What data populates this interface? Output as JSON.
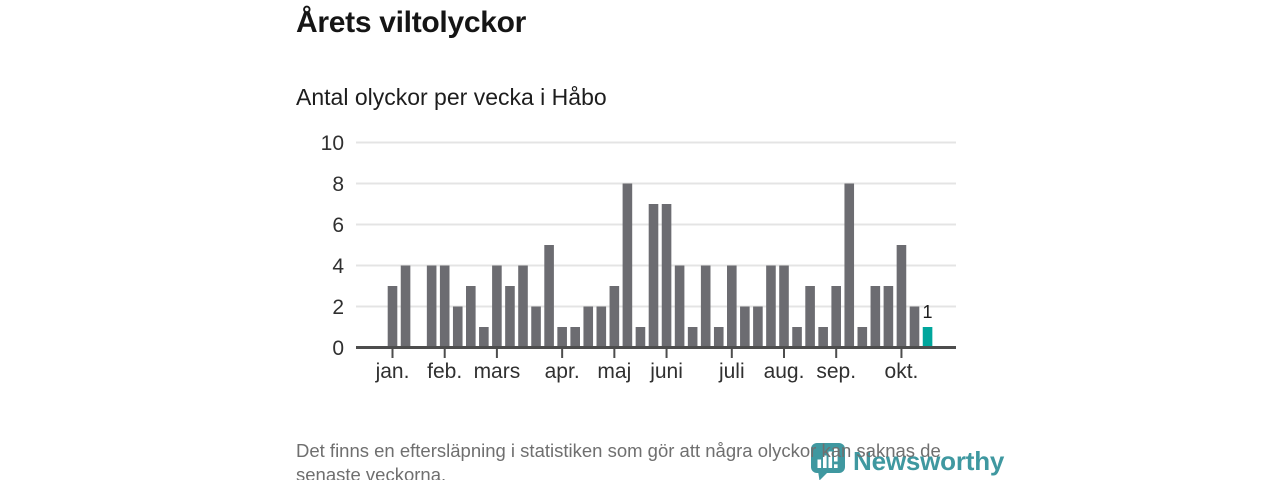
{
  "title": "Årets viltolyckor",
  "subtitle": "Antal olyckor per vecka i Håbo",
  "footnote": "Det finns en eftersläpning i statistiken som gör att några olyckor kan saknas de senaste veckorna.",
  "logo": {
    "text": "Newsworthy",
    "icon": "newsworthy-marker-barchart-icon"
  },
  "colors": {
    "bar": "#6c6c71",
    "highlight": "#00a69c",
    "axis": "#4d4d4d",
    "grid": "#e4e4e4",
    "tick_label": "#303030",
    "bar_label": "#1c1c1c",
    "footnote_text": "#6f6f6f",
    "logo_teal": "#3f98a0"
  },
  "chart_data": {
    "type": "bar",
    "title": "Årets viltolyckor",
    "subtitle": "Antal olyckor per vecka i Håbo",
    "xlabel": "",
    "ylabel": "Antal olyckor per vecka",
    "x_unit": "vecka",
    "x": [
      1,
      2,
      3,
      4,
      5,
      6,
      7,
      8,
      9,
      10,
      11,
      12,
      13,
      14,
      15,
      16,
      17,
      18,
      19,
      20,
      21,
      22,
      23,
      24,
      25,
      26,
      27,
      28,
      29,
      30,
      31,
      32,
      33,
      34,
      35,
      36,
      37,
      38,
      39,
      40,
      41,
      42
    ],
    "values": [
      3,
      4,
      0,
      4,
      4,
      2,
      3,
      1,
      4,
      3,
      4,
      2,
      5,
      1,
      1,
      2,
      2,
      3,
      8,
      1,
      7,
      7,
      4,
      1,
      4,
      1,
      4,
      2,
      2,
      4,
      4,
      1,
      3,
      1,
      3,
      8,
      1,
      3,
      3,
      5,
      2,
      1
    ],
    "ylim": [
      0,
      10
    ],
    "yticks": [
      0,
      2,
      4,
      6,
      8,
      10
    ],
    "grid": "horizontal",
    "legend": "none",
    "highlight_last_bar": true,
    "last_bar_label": "1",
    "month_ticks": [
      {
        "label": "jan.",
        "week_index": 0
      },
      {
        "label": "feb.",
        "week_index": 4
      },
      {
        "label": "mars",
        "week_index": 8
      },
      {
        "label": "apr.",
        "week_index": 13
      },
      {
        "label": "maj",
        "week_index": 17
      },
      {
        "label": "juni",
        "week_index": 21
      },
      {
        "label": "juli",
        "week_index": 26
      },
      {
        "label": "aug.",
        "week_index": 30
      },
      {
        "label": "sep.",
        "week_index": 34
      },
      {
        "label": "okt.",
        "week_index": 39
      }
    ]
  }
}
